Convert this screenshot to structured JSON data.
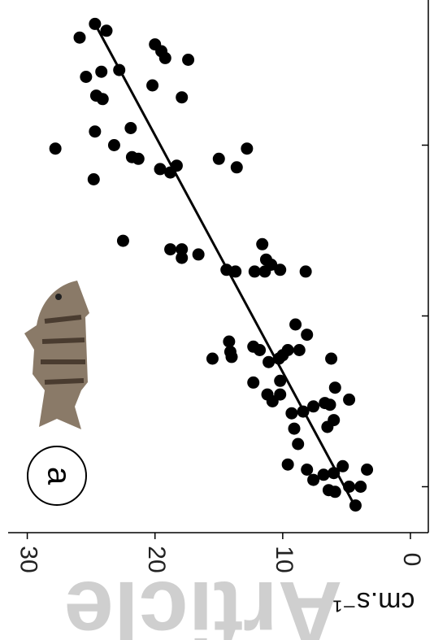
{
  "chart_data": {
    "type": "scatter",
    "panel_label": "a",
    "y_label": "cm.s⁻¹",
    "watermark": "Article",
    "color": "#000000",
    "ylim": [
      0,
      31.5
    ],
    "yticks": [
      0,
      10,
      20,
      30
    ],
    "xlim": [
      0.8,
      3.85
    ],
    "xticks": [
      1,
      2,
      3
    ],
    "x": [
      3.71,
      3.67,
      3.63,
      3.59,
      3.55,
      3.51,
      3.5,
      3.44,
      3.43,
      3.4,
      3.35,
      3.29,
      3.27,
      3.28,
      3.1,
      3.08,
      3.0,
      2.98,
      2.98,
      2.93,
      2.92,
      2.92,
      2.86,
      2.88,
      2.84,
      2.87,
      2.8,
      2.44,
      2.42,
      2.39,
      2.39,
      2.34,
      2.36,
      2.33,
      2.3,
      2.27,
      2.26,
      2.26,
      2.26,
      2.27,
      2.26,
      1.95,
      1.89,
      1.85,
      1.82,
      1.79,
      1.8,
      1.8,
      1.8,
      1.75,
      1.76,
      1.77,
      1.75,
      1.75,
      1.73,
      1.61,
      1.62,
      1.58,
      1.54,
      1.54,
      1.5,
      1.51,
      1.49,
      1.47,
      1.48,
      1.44,
      1.43,
      1.39,
      1.34,
      1.35,
      1.25,
      1.13,
      1.1,
      1.12,
      1.1,
      1.07,
      1.04,
      1.08,
      0.98,
      1.0,
      0.97,
      1.0,
      0.89
    ],
    "values": [
      24.7,
      23.8,
      25.9,
      20.0,
      19.5,
      19.2,
      17.4,
      22.8,
      24.2,
      25.4,
      20.2,
      24.6,
      24.1,
      17.9,
      21.9,
      24.7,
      23.2,
      27.8,
      12.8,
      21.8,
      21.3,
      15.0,
      19.6,
      18.3,
      18.8,
      13.6,
      24.8,
      22.5,
      11.6,
      18.8,
      17.9,
      17.9,
      16.6,
      11.3,
      10.9,
      14.4,
      13.7,
      12.2,
      11.4,
      10.2,
      8.2,
      9.0,
      8.1,
      14.2,
      12.3,
      14.1,
      11.8,
      9.6,
      8.7,
      15.5,
      14.0,
      10.0,
      10.3,
      6.2,
      11.1,
      12.3,
      10.2,
      5.9,
      11.2,
      10.2,
      10.8,
      4.8,
      6.7,
      7.6,
      6.3,
      8.4,
      9.3,
      6.0,
      9.1,
      6.5,
      8.8,
      9.6,
      8.1,
      5.3,
      3.4,
      6.8,
      7.6,
      6.0,
      6.4,
      4.8,
      5.9,
      3.9,
      4.3
    ],
    "fit": {
      "x": [
        3.71,
        0.88
      ],
      "values": [
        24.7,
        4.3
      ]
    }
  }
}
